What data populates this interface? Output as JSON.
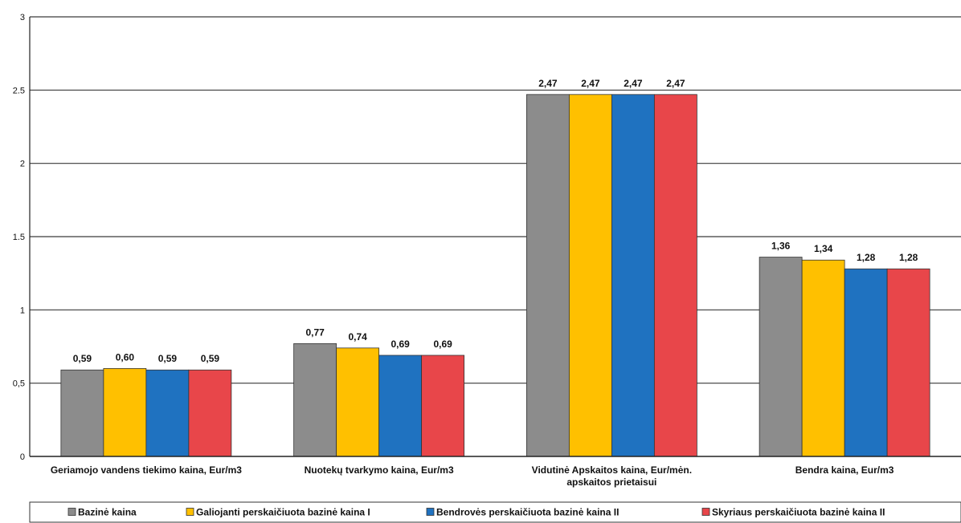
{
  "chart_data": {
    "type": "bar",
    "categories": [
      [
        "Geriamojo vandens tiekimo kaina, Eur/m3"
      ],
      [
        "Nuotekų tvarkymo kaina, Eur/m3"
      ],
      [
        "Vidutinė Apskaitos kaina, Eur/mėn.",
        "apskaitos prietaisui"
      ],
      [
        "Bendra kaina, Eur/m3"
      ]
    ],
    "series": [
      {
        "name": "Bazinė kaina",
        "color": "#8c8c8c",
        "values": [
          0.59,
          0.77,
          2.47,
          1.36
        ],
        "labels": [
          "0,59",
          "0,77",
          "2,47",
          "1,36"
        ]
      },
      {
        "name": "Galiojanti perskaičiuota bazinė kaina I",
        "color": "#ffc000",
        "values": [
          0.6,
          0.74,
          2.47,
          1.34
        ],
        "labels": [
          "0,60",
          "0,74",
          "2,47",
          "1,34"
        ]
      },
      {
        "name": "Bendrovės perskaičiuota bazinė kaina II",
        "color": "#1f72c0",
        "values": [
          0.59,
          0.69,
          2.47,
          1.28
        ],
        "labels": [
          "0,59",
          "0,69",
          "2,47",
          "1,28"
        ]
      },
      {
        "name": "Skyriaus perskaičiuota bazinė kaina II",
        "color": "#e8464a",
        "values": [
          0.59,
          0.69,
          2.47,
          1.28
        ],
        "labels": [
          "0,59",
          "0,69",
          "2,47",
          "1,28"
        ]
      }
    ],
    "yticks": [
      {
        "value": 0,
        "label": "0"
      },
      {
        "value": 0.5,
        "label": "0,5"
      },
      {
        "value": 1,
        "label": "1"
      },
      {
        "value": 1.5,
        "label": "1.5"
      },
      {
        "value": 2,
        "label": "2"
      },
      {
        "value": 2.5,
        "label": "2.5"
      },
      {
        "value": 3,
        "label": "3"
      }
    ],
    "ylim": [
      0,
      3
    ],
    "grid": true,
    "legend_position": "bottom"
  }
}
